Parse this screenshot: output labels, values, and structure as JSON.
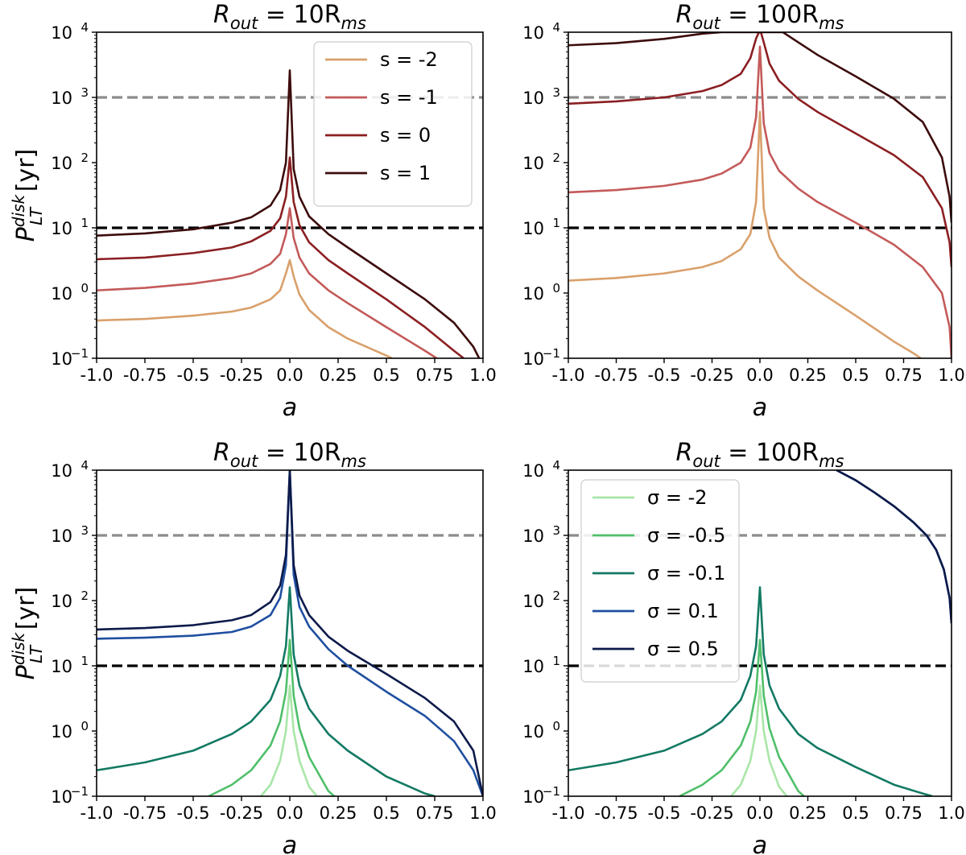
{
  "figure": {
    "ylabel_main": "P",
    "ylabel_sup": "disk",
    "ylabel_sub": "LT",
    "ylabel_unit": "[yr]",
    "xlabel": "a",
    "x_ticks": [
      "-1.0",
      "-0.75",
      "-0.5",
      "-0.25",
      "0.0",
      "0.25",
      "0.5",
      "0.75",
      "1.0"
    ],
    "y_tick_base": "10",
    "y_tick_exponents": [
      "−1",
      "0",
      "1",
      "2",
      "3",
      "4"
    ]
  },
  "chart_data": [
    {
      "type": "line",
      "panel": "top-left",
      "title_main": "R",
      "title_sub": "out",
      "title_mid": " = 10R",
      "title_sub2": "ms",
      "xlabel": "a",
      "ylabel": "P_LT^disk [yr]",
      "yscale": "log",
      "xlim": [
        -1.0,
        1.0
      ],
      "ylim": [
        0.1,
        10000
      ],
      "legend_position": "upper-right",
      "reference_lines": [
        {
          "y": 1000,
          "color": "#8c8c8c",
          "style": "dashed"
        },
        {
          "y": 10,
          "color": "#000000",
          "style": "dashed"
        }
      ],
      "series": [
        {
          "name": "s = -2",
          "color": "#d9a06b",
          "x": [
            -1.0,
            -0.75,
            -0.5,
            -0.3,
            -0.2,
            -0.1,
            -0.05,
            -0.02,
            0.0,
            0.02,
            0.05,
            0.1,
            0.2,
            0.3,
            0.5,
            0.53
          ],
          "y": [
            0.38,
            0.4,
            0.45,
            0.52,
            0.6,
            0.8,
            1.1,
            2.0,
            3.2,
            1.8,
            0.95,
            0.55,
            0.3,
            0.2,
            0.11,
            0.1
          ]
        },
        {
          "name": "s = -1",
          "color": "#c45a5a",
          "x": [
            -1.0,
            -0.75,
            -0.5,
            -0.3,
            -0.2,
            -0.1,
            -0.05,
            -0.02,
            0.0,
            0.02,
            0.05,
            0.1,
            0.2,
            0.3,
            0.5,
            0.7,
            0.76
          ],
          "y": [
            1.1,
            1.2,
            1.4,
            1.7,
            2.0,
            2.8,
            4.0,
            8.0,
            20,
            7.0,
            3.5,
            2.0,
            1.1,
            0.7,
            0.3,
            0.13,
            0.1
          ]
        },
        {
          "name": "s = 0",
          "color": "#8b1f22",
          "x": [
            -1.0,
            -0.75,
            -0.5,
            -0.3,
            -0.2,
            -0.1,
            -0.05,
            -0.02,
            0.0,
            0.02,
            0.05,
            0.1,
            0.2,
            0.3,
            0.5,
            0.7,
            0.85,
            0.9
          ],
          "y": [
            3.3,
            3.5,
            4.1,
            5.0,
            6.2,
            9.0,
            14,
            30,
            120,
            25,
            11,
            6.0,
            3.2,
            2.0,
            0.8,
            0.3,
            0.13,
            0.1
          ]
        },
        {
          "name": "s = 1",
          "color": "#3d0c0c",
          "x": [
            -1.0,
            -0.75,
            -0.5,
            -0.3,
            -0.2,
            -0.1,
            -0.05,
            -0.02,
            0.0,
            0.02,
            0.05,
            0.1,
            0.2,
            0.3,
            0.5,
            0.7,
            0.85,
            0.95,
            0.98
          ],
          "y": [
            7.6,
            8.2,
            9.5,
            12,
            14.5,
            22,
            38,
            100,
            2600,
            80,
            30,
            15,
            8.0,
            5.0,
            2.0,
            0.8,
            0.35,
            0.15,
            0.1
          ]
        }
      ]
    },
    {
      "type": "line",
      "panel": "top-right",
      "title_main": "R",
      "title_sub": "out",
      "title_mid": " = 100R",
      "title_sub2": "ms",
      "xlabel": "a",
      "ylabel": "",
      "yscale": "log",
      "xlim": [
        -1.0,
        1.0
      ],
      "ylim": [
        0.1,
        10000
      ],
      "legend_position": "none",
      "reference_lines": [
        {
          "y": 1000,
          "color": "#8c8c8c",
          "style": "dashed"
        },
        {
          "y": 10,
          "color": "#000000",
          "style": "dashed"
        }
      ],
      "series": [
        {
          "name": "s = -2",
          "color": "#d9a06b",
          "x": [
            -1.0,
            -0.75,
            -0.5,
            -0.3,
            -0.2,
            -0.1,
            -0.05,
            -0.02,
            0.0,
            0.02,
            0.05,
            0.1,
            0.2,
            0.3,
            0.5,
            0.7,
            0.8,
            0.84
          ],
          "y": [
            1.55,
            1.7,
            2.0,
            2.5,
            3.1,
            4.7,
            8.0,
            25,
            600,
            20,
            7.0,
            3.5,
            1.8,
            1.1,
            0.45,
            0.18,
            0.12,
            0.1
          ]
        },
        {
          "name": "s = -1",
          "color": "#c45a5a",
          "x": [
            -1.0,
            -0.75,
            -0.5,
            -0.3,
            -0.2,
            -0.1,
            -0.05,
            -0.02,
            0.0,
            0.02,
            0.05,
            0.1,
            0.2,
            0.3,
            0.5,
            0.7,
            0.85,
            0.95,
            0.99,
            1.0
          ],
          "y": [
            35,
            38,
            44,
            55,
            68,
            100,
            170,
            500,
            6000,
            400,
            140,
            75,
            40,
            25,
            12,
            5.5,
            2.5,
            1.0,
            0.3,
            0.1
          ]
        },
        {
          "name": "s = 0",
          "color": "#8b1f22",
          "x": [
            -1.0,
            -0.75,
            -0.5,
            -0.3,
            -0.2,
            -0.1,
            -0.05,
            -0.02,
            -0.005,
            0.005,
            0.02,
            0.05,
            0.1,
            0.2,
            0.3,
            0.5,
            0.7,
            0.85,
            0.95,
            0.99,
            1.0
          ],
          "y": [
            800,
            870,
            1000,
            1250,
            1550,
            2300,
            4000,
            8000,
            10000,
            10000,
            7000,
            3300,
            1800,
            950,
            600,
            280,
            130,
            60,
            20,
            6,
            2.5
          ]
        },
        {
          "name": "s = 1",
          "color": "#3d0c0c",
          "x": [
            -1.0,
            -0.75,
            -0.5,
            -0.3,
            -0.2,
            -0.12,
            0.12,
            0.2,
            0.3,
            0.5,
            0.7,
            0.85,
            0.95,
            0.99,
            1.0
          ],
          "y": [
            6300,
            6800,
            7900,
            9500,
            10000,
            10000,
            10000,
            7000,
            4500,
            2100,
            950,
            420,
            120,
            30,
            12
          ]
        }
      ]
    },
    {
      "type": "line",
      "panel": "bottom-left",
      "title_main": "R",
      "title_sub": "out",
      "title_mid": " = 10R",
      "title_sub2": "ms",
      "xlabel": "a",
      "ylabel": "P_LT^disk [yr]",
      "yscale": "log",
      "xlim": [
        -1.0,
        1.0
      ],
      "ylim": [
        0.1,
        10000
      ],
      "legend_position": "none",
      "reference_lines": [
        {
          "y": 1000,
          "color": "#8c8c8c",
          "style": "dashed"
        },
        {
          "y": 10,
          "color": "#000000",
          "style": "dashed"
        }
      ],
      "series": [
        {
          "name": "σ = -2",
          "color": "#a8e6a8",
          "x": [
            -0.15,
            -0.1,
            -0.05,
            -0.02,
            0.0,
            0.02,
            0.05,
            0.1,
            0.14
          ],
          "y": [
            0.1,
            0.15,
            0.35,
            1.0,
            5.0,
            1.0,
            0.35,
            0.14,
            0.1
          ]
        },
        {
          "name": "σ = -0.5",
          "color": "#4fbf6a",
          "x": [
            -0.42,
            -0.3,
            -0.2,
            -0.1,
            -0.05,
            -0.02,
            0.0,
            0.02,
            0.05,
            0.1,
            0.2,
            0.23
          ],
          "y": [
            0.1,
            0.15,
            0.25,
            0.6,
            1.4,
            4.0,
            25,
            3.5,
            1.1,
            0.4,
            0.12,
            0.1
          ]
        },
        {
          "name": "σ = -0.1",
          "color": "#137a63",
          "x": [
            -1.0,
            -0.75,
            -0.5,
            -0.3,
            -0.2,
            -0.1,
            -0.05,
            -0.02,
            0.0,
            0.02,
            0.05,
            0.1,
            0.2,
            0.3,
            0.5,
            0.7,
            0.75
          ],
          "y": [
            0.25,
            0.33,
            0.5,
            0.9,
            1.4,
            3.0,
            7.0,
            20,
            160,
            15,
            5.0,
            2.2,
            0.9,
            0.5,
            0.2,
            0.11,
            0.1
          ]
        },
        {
          "name": "σ = 0.1",
          "color": "#1f4fa0",
          "x": [
            -1.0,
            -0.75,
            -0.5,
            -0.3,
            -0.2,
            -0.1,
            -0.05,
            -0.02,
            0.0,
            0.02,
            0.05,
            0.1,
            0.2,
            0.3,
            0.5,
            0.7,
            0.85,
            0.95,
            1.0
          ],
          "y": [
            26,
            27,
            29,
            33,
            40,
            60,
            110,
            350,
            10000,
            250,
            80,
            40,
            18,
            10,
            4.0,
            1.7,
            0.7,
            0.25,
            0.1
          ]
        },
        {
          "name": "σ = 0.5",
          "color": "#0c1a4a",
          "x": [
            -1.0,
            -0.75,
            -0.5,
            -0.3,
            -0.2,
            -0.1,
            -0.05,
            -0.02,
            0.0,
            0.02,
            0.05,
            0.1,
            0.2,
            0.3,
            0.5,
            0.7,
            0.85,
            0.95,
            1.0
          ],
          "y": [
            36,
            38,
            42,
            50,
            60,
            95,
            170,
            500,
            10000,
            350,
            120,
            60,
            28,
            17,
            7.5,
            3.2,
            1.4,
            0.5,
            0.1
          ]
        }
      ]
    },
    {
      "type": "line",
      "panel": "bottom-right",
      "title_main": "R",
      "title_sub": "out",
      "title_mid": " = 100R",
      "title_sub2": "ms",
      "xlabel": "a",
      "ylabel": "",
      "yscale": "log",
      "xlim": [
        -1.0,
        1.0
      ],
      "ylim": [
        0.1,
        10000
      ],
      "legend_position": "upper-left",
      "reference_lines": [
        {
          "y": 1000,
          "color": "#8c8c8c",
          "style": "dashed"
        },
        {
          "y": 10,
          "color": "#000000",
          "style": "dashed"
        }
      ],
      "series": [
        {
          "name": "σ = -2",
          "color": "#a8e6a8",
          "x": [
            -0.15,
            -0.1,
            -0.05,
            -0.02,
            0.0,
            0.02,
            0.05,
            0.1,
            0.14
          ],
          "y": [
            0.1,
            0.15,
            0.35,
            1.0,
            5.0,
            1.0,
            0.35,
            0.14,
            0.1
          ]
        },
        {
          "name": "σ = -0.5",
          "color": "#4fbf6a",
          "x": [
            -0.42,
            -0.3,
            -0.2,
            -0.1,
            -0.05,
            -0.02,
            0.0,
            0.02,
            0.05,
            0.1,
            0.2,
            0.23
          ],
          "y": [
            0.1,
            0.15,
            0.25,
            0.6,
            1.4,
            4.0,
            25,
            3.5,
            1.1,
            0.4,
            0.12,
            0.1
          ]
        },
        {
          "name": "σ = -0.1",
          "color": "#137a63",
          "x": [
            -1.0,
            -0.75,
            -0.5,
            -0.3,
            -0.2,
            -0.1,
            -0.05,
            -0.02,
            0.0,
            0.02,
            0.05,
            0.1,
            0.2,
            0.3,
            0.5,
            0.7,
            0.85,
            0.9
          ],
          "y": [
            0.25,
            0.33,
            0.5,
            0.9,
            1.4,
            3.0,
            7.0,
            20,
            160,
            15,
            5.0,
            2.2,
            0.9,
            0.55,
            0.28,
            0.15,
            0.11,
            0.1
          ]
        },
        {
          "name": "σ = 0.1",
          "color": "#1f4fa0",
          "x": [
            0.4,
            0.5,
            0.6,
            0.7,
            0.8,
            0.87,
            0.92,
            0.96,
            0.99,
            1.0
          ],
          "y": [
            10000,
            7000,
            4500,
            2800,
            1600,
            1000,
            600,
            300,
            110,
            45
          ]
        },
        {
          "name": "σ = 0.5",
          "color": "#0c1a4a",
          "x": [
            0.4,
            0.5,
            0.6,
            0.7,
            0.8,
            0.87,
            0.92,
            0.96,
            0.99,
            1.0
          ],
          "y": [
            10000,
            7000,
            4500,
            2800,
            1600,
            1000,
            600,
            300,
            110,
            45
          ]
        }
      ]
    }
  ]
}
